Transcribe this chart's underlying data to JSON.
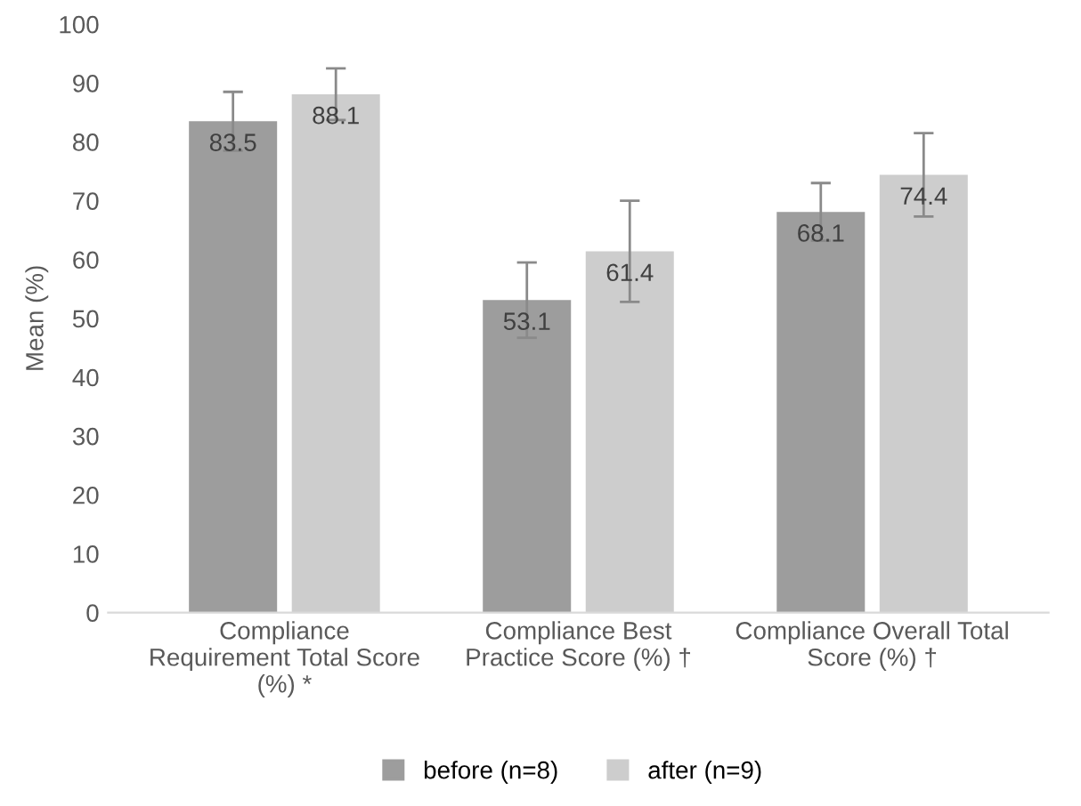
{
  "chart_data": {
    "type": "bar",
    "ylabel": "Mean (%)",
    "categories": [
      "Compliance\nRequirement Total Score\n(%) *",
      "Compliance Best\nPractice Score (%) †",
      "Compliance Overall Total\nScore (%) †"
    ],
    "series": [
      {
        "name": "before (n=8)",
        "color": "#9d9d9d",
        "values": [
          83.5,
          53.1,
          68.1
        ],
        "errors": [
          5.0,
          6.4,
          4.9
        ]
      },
      {
        "name": "after (n=9)",
        "color": "#cdcdcd",
        "values": [
          88.1,
          61.4,
          74.4
        ],
        "errors": [
          4.4,
          8.6,
          7.1
        ]
      }
    ],
    "ylim": [
      0,
      100
    ],
    "yticks": [
      0,
      10,
      20,
      30,
      40,
      50,
      60,
      70,
      80,
      90,
      100
    ],
    "data_labels": true,
    "legend": "bottom",
    "grid": false
  }
}
